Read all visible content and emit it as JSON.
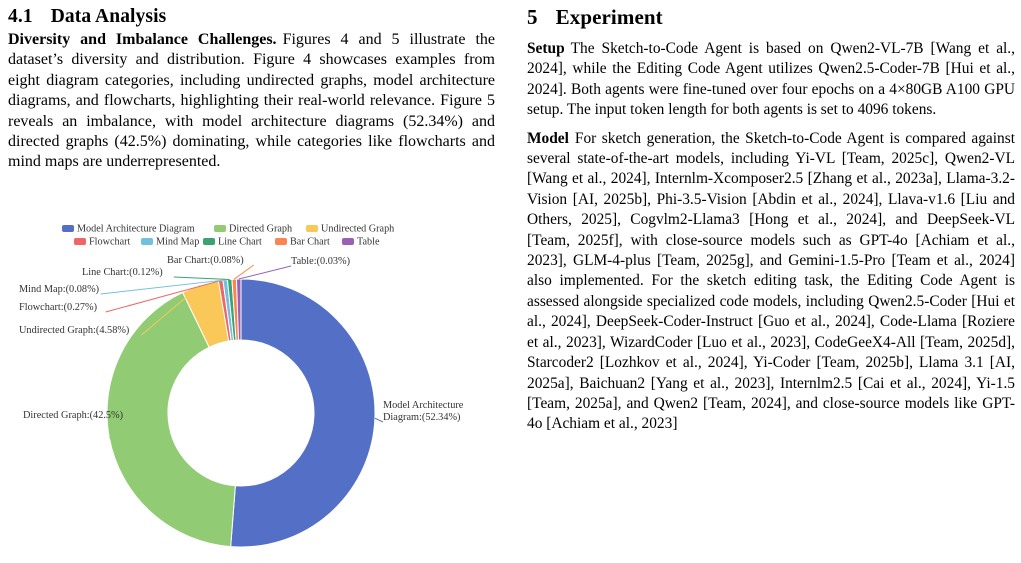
{
  "left": {
    "section_number": "4.1",
    "section_title": "Data Analysis",
    "para_runin": "Diversity and Imbalance Challenges.",
    "para_text": "Figures 4 and 5 illustrate the dataset’s diversity and distribution. Figure 4 showcases examples from eight diagram categories, including undirected graphs, model architecture diagrams, and flowcharts, highlighting their real-world relevance. Figure 5 reveals an imbalance, with model architecture diagrams (52.34%) and directed graphs (42.5%) dominating, while categories like flowcharts and mind maps are underrepresented."
  },
  "right": {
    "section_number": "5",
    "section_title": "Experiment",
    "setup_runin": "Setup",
    "setup_text": "The Sketch-to-Code Agent is based on Qwen2-VL-7B [Wang et al., 2024], while the Editing Code Agent utilizes Qwen2.5-Coder-7B [Hui et al., 2024]. Both agents were fine-tuned over four epochs on a 4×80GB A100 GPU setup. The input token length for both agents is set to 4096 tokens.",
    "model_runin": "Model",
    "model_text": "For sketch generation, the Sketch-to-Code Agent is compared against several state-of-the-art models, including Yi-VL [Team, 2025c], Qwen2-VL [Wang et al., 2024], Internlm-Xcomposer2.5 [Zhang et al., 2023a], Llama-3.2-Vision [AI, 2025b], Phi-3.5-Vision [Abdin et al., 2024], Llava-v1.6 [Liu and Others, 2025], Cogvlm2-Llama3 [Hong et al., 2024], and DeepSeek-VL [Team, 2025f], with close-source models such as GPT-4o [Achiam et al., 2023], GLM-4-plus [Team, 2025g], and Gemini-1.5-Pro [Team et al., 2024] also implemented. For the sketch editing task, the Editing Code Agent is assessed alongside specialized code models, including Qwen2.5-Coder [Hui et al., 2024], DeepSeek-Coder-Instruct [Guo et al., 2024], Code-Llama [Roziere et al., 2023], WizardCoder [Luo et al., 2023], CodeGeeX4-All [Team, 2025d], Starcoder2 [Lozhkov et al., 2024], Yi-Coder [Team, 2025b], Llama 3.1 [AI, 2025a], Baichuan2 [Yang et al., 2023], Internlm2.5 [Cai et al., 2024], Yi-1.5 [Team, 2025a], and Qwen2 [Team, 2024], and close-source models like GPT-4o [Achiam et al., 2023]"
  },
  "chart_data": {
    "type": "pie",
    "donut": true,
    "legend_position": "top",
    "legend": [
      {
        "name": "Model Architecture Diagram",
        "color": "#5470c6"
      },
      {
        "name": "Directed Graph",
        "color": "#91cc75"
      },
      {
        "name": "Undirected Graph",
        "color": "#fac858"
      },
      {
        "name": "Flowchart",
        "color": "#ee6666"
      },
      {
        "name": "Mind Map",
        "color": "#73c0de"
      },
      {
        "name": "Line Chart",
        "color": "#3ba272"
      },
      {
        "name": "Bar Chart",
        "color": "#fc8452"
      },
      {
        "name": "Table",
        "color": "#9a60b4"
      }
    ],
    "slices": [
      {
        "name": "Model Architecture Diagram",
        "value": 52.34,
        "label": [
          "Model Architecture",
          "Diagram:(52.34%)"
        ]
      },
      {
        "name": "Directed Graph",
        "value": 42.5,
        "label": [
          "Directed Graph:(42.5%)"
        ]
      },
      {
        "name": "Undirected Graph",
        "value": 4.58,
        "label": [
          "Undirected Graph:(4.58%)"
        ]
      },
      {
        "name": "Flowchart",
        "value": 0.27,
        "label": [
          "Flowchart:(0.27%)"
        ]
      },
      {
        "name": "Mind Map",
        "value": 0.08,
        "label": [
          "Mind Map:(0.08%)"
        ]
      },
      {
        "name": "Line Chart",
        "value": 0.12,
        "label": [
          "Line Chart:(0.12%)"
        ]
      },
      {
        "name": "Bar Chart",
        "value": 0.08,
        "label": [
          "Bar Chart:(0.08%)"
        ]
      },
      {
        "name": "Table",
        "value": 0.03,
        "label": [
          "Table:(0.03%)"
        ]
      }
    ]
  }
}
